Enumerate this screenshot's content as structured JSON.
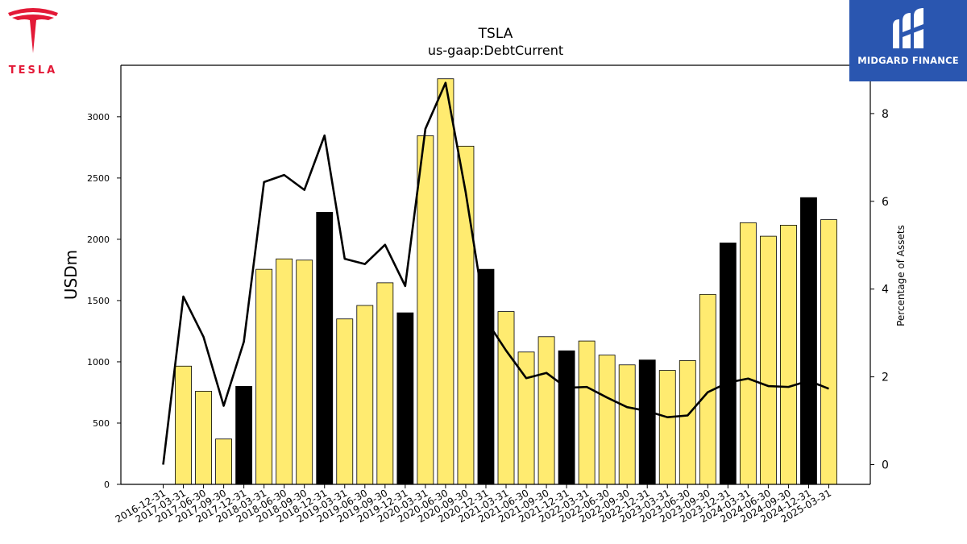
{
  "header": {
    "title": "TSLA",
    "subtitle": "us-gaap:DebtCurrent"
  },
  "logos": {
    "left_brand": "TESLA",
    "left_brand_color": "#e31937",
    "right_brand": "MIDGARD FINANCE",
    "right_brand_bg": "#2a56b0"
  },
  "chart_data": {
    "type": "bar",
    "title": "TSLA",
    "subtitle": "us-gaap:DebtCurrent",
    "ylabel": "USDm",
    "y2label": "Percentage of Assets",
    "ylim": [
      0,
      3420
    ],
    "y2lim": [
      -0.45,
      9.1
    ],
    "yticks": [
      0,
      500,
      1000,
      1500,
      2000,
      2500,
      3000
    ],
    "y2ticks": [
      0,
      2,
      4,
      6,
      8
    ],
    "grid": false,
    "bar_color": "#ffeb70",
    "q4_bar_color": "#000000",
    "line_color": "#000000",
    "categories": [
      "2016-12-31",
      "2017-03-31",
      "2017-06-30",
      "2017-09-30",
      "2017-12-31",
      "2018-03-31",
      "2018-06-30",
      "2018-09-30",
      "2018-12-31",
      "2019-03-31",
      "2019-06-30",
      "2019-09-30",
      "2019-12-31",
      "2020-03-31",
      "2020-06-30",
      "2020-09-30",
      "2020-12-31",
      "2021-03-31",
      "2021-06-30",
      "2021-09-30",
      "2021-12-31",
      "2022-03-31",
      "2022-06-30",
      "2022-09-30",
      "2022-12-31",
      "2023-03-31",
      "2023-06-30",
      "2023-09-30",
      "2023-12-31",
      "2024-03-31",
      "2024-06-30",
      "2024-09-30",
      "2024-12-31",
      "2025-03-31"
    ],
    "series": [
      {
        "kind": "bar",
        "values": [
          null,
          965,
          760,
          370,
          800,
          1755,
          1840,
          1830,
          2220,
          1350,
          1460,
          1645,
          1400,
          2845,
          3310,
          2760,
          1755,
          1410,
          1080,
          1205,
          1090,
          1170,
          1055,
          975,
          1015,
          930,
          1010,
          1550,
          1970,
          2135,
          2025,
          2115,
          2340,
          2160
        ],
        "q4_highlight": [
          false,
          false,
          false,
          false,
          true,
          false,
          false,
          false,
          true,
          false,
          false,
          false,
          true,
          false,
          false,
          false,
          true,
          false,
          false,
          false,
          true,
          false,
          false,
          false,
          true,
          false,
          false,
          false,
          true,
          false,
          false,
          false,
          true,
          false
        ]
      },
      {
        "kind": "line",
        "axis": "right",
        "values": [
          0,
          3.83,
          2.91,
          1.34,
          2.8,
          6.44,
          6.6,
          6.26,
          7.5,
          4.69,
          4.57,
          5.01,
          4.07,
          7.65,
          8.7,
          6.2,
          3.3,
          2.6,
          1.97,
          2.09,
          1.75,
          1.77,
          1.53,
          1.31,
          1.22,
          1.08,
          1.12,
          1.65,
          1.87,
          1.96,
          1.79,
          1.77,
          1.91,
          1.73
        ]
      }
    ]
  }
}
